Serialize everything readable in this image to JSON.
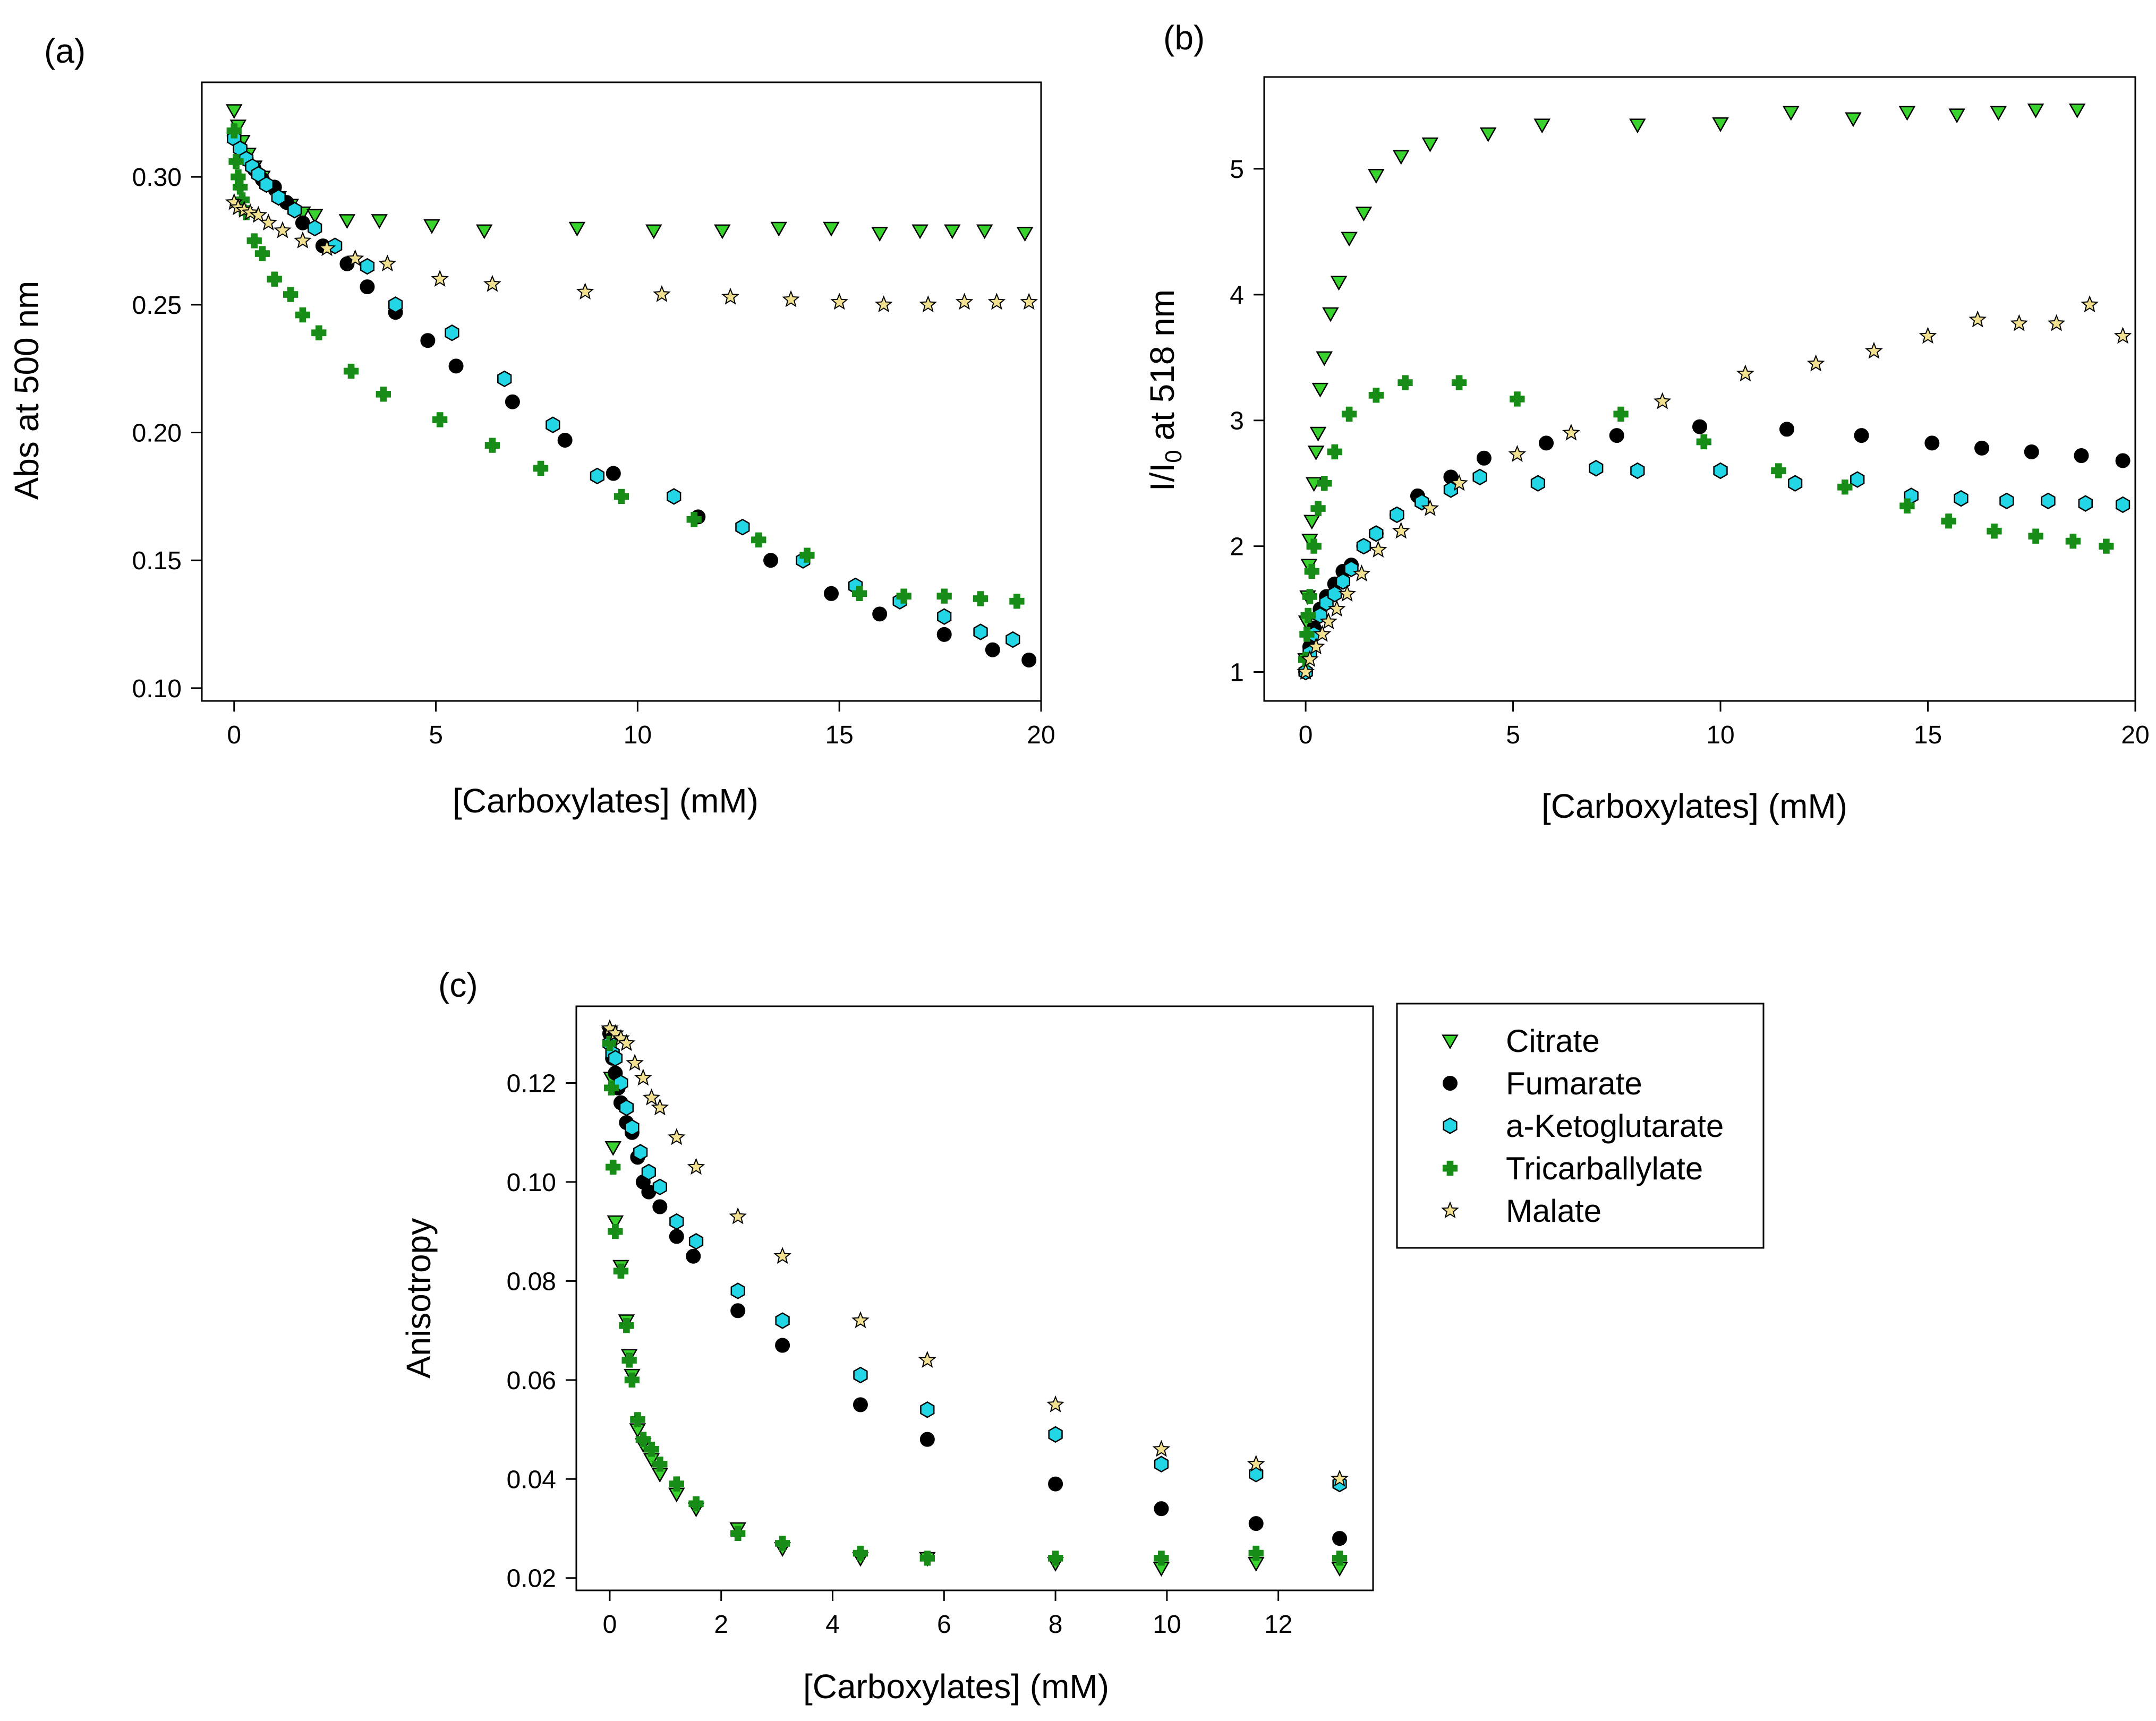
{
  "series_styles": {
    "Citrate": {
      "marker": "triangle-down",
      "fill": "#39d32e",
      "stroke": "#000000"
    },
    "Fumarate": {
      "marker": "circle",
      "fill": "#000000",
      "stroke": "#000000"
    },
    "a-Ketoglutarate": {
      "marker": "hexagon",
      "fill": "#22d6e6",
      "stroke": "#000000"
    },
    "Tricarballylate": {
      "marker": "cross",
      "fill": "#178c17",
      "stroke": "#178c17"
    },
    "Malate": {
      "marker": "star",
      "fill": "#f0e090",
      "stroke": "#000000"
    }
  },
  "legend": {
    "entries": [
      "Citrate",
      "Fumarate",
      "a-Ketoglutarate",
      "Tricarballylate",
      "Malate"
    ]
  },
  "chart_data": [
    {
      "id": "a",
      "panel_label": "(a)",
      "type": "scatter",
      "xlabel": "[Carboxylates] (mM)",
      "ylabel": "Abs at 500 nm",
      "xlim": [
        -0.8,
        20
      ],
      "ylim": [
        0.095,
        0.337
      ],
      "xticks": [
        0,
        5,
        10,
        15,
        20
      ],
      "yticks": [
        0.1,
        0.15,
        0.2,
        0.25,
        0.3
      ],
      "ytick_labels": [
        "0.10",
        "0.15",
        "0.20",
        "0.25",
        "0.30"
      ],
      "series": [
        {
          "name": "Citrate",
          "x": [
            0,
            0.1,
            0.2,
            0.35,
            0.5,
            0.7,
            0.9,
            1.1,
            1.4,
            1.7,
            2.0,
            2.8,
            3.6,
            4.9,
            6.2,
            8.5,
            10.4,
            12.1,
            13.5,
            14.8,
            16.0,
            17.0,
            17.8,
            18.6,
            19.6
          ],
          "y": [
            0.326,
            0.32,
            0.314,
            0.309,
            0.304,
            0.3,
            0.296,
            0.292,
            0.289,
            0.286,
            0.285,
            0.283,
            0.283,
            0.281,
            0.279,
            0.28,
            0.279,
            0.279,
            0.28,
            0.28,
            0.278,
            0.279,
            0.279,
            0.279,
            0.278
          ]
        },
        {
          "name": "Fumarate",
          "x": [
            0,
            0.15,
            0.3,
            0.5,
            0.7,
            1.0,
            1.3,
            1.7,
            2.2,
            2.8,
            3.3,
            4.0,
            4.8,
            5.5,
            6.9,
            8.2,
            9.4,
            11.5,
            13.3,
            14.8,
            16.0,
            17.6,
            18.8,
            19.7
          ],
          "y": [
            0.316,
            0.311,
            0.307,
            0.303,
            0.299,
            0.296,
            0.29,
            0.282,
            0.273,
            0.266,
            0.257,
            0.247,
            0.236,
            0.226,
            0.212,
            0.197,
            0.184,
            0.167,
            0.15,
            0.137,
            0.129,
            0.121,
            0.115,
            0.111
          ]
        },
        {
          "name": "a-Ketoglutarate",
          "x": [
            0,
            0.15,
            0.3,
            0.45,
            0.6,
            0.8,
            1.1,
            1.5,
            2.0,
            2.5,
            3.3,
            4.0,
            5.4,
            6.7,
            7.9,
            9.0,
            10.9,
            12.6,
            14.1,
            15.4,
            16.5,
            17.6,
            18.5,
            19.3
          ],
          "y": [
            0.315,
            0.311,
            0.307,
            0.304,
            0.301,
            0.297,
            0.292,
            0.287,
            0.28,
            0.273,
            0.265,
            0.25,
            0.239,
            0.221,
            0.203,
            0.183,
            0.175,
            0.163,
            0.15,
            0.14,
            0.134,
            0.128,
            0.122,
            0.119
          ]
        },
        {
          "name": "Tricarballylate",
          "x": [
            0,
            0.05,
            0.1,
            0.15,
            0.2,
            0.3,
            0.5,
            0.7,
            1.0,
            1.4,
            1.7,
            2.1,
            2.9,
            3.7,
            5.1,
            6.4,
            7.6,
            9.6,
            11.4,
            13.0,
            14.2,
            15.5,
            16.6,
            17.6,
            18.5,
            19.4
          ],
          "y": [
            0.318,
            0.306,
            0.3,
            0.296,
            0.291,
            0.286,
            0.275,
            0.27,
            0.26,
            0.254,
            0.246,
            0.239,
            0.224,
            0.215,
            0.205,
            0.195,
            0.186,
            0.175,
            0.166,
            0.158,
            0.152,
            0.137,
            0.136,
            0.136,
            0.135,
            0.134
          ]
        },
        {
          "name": "Malate",
          "x": [
            0,
            0.1,
            0.25,
            0.4,
            0.6,
            0.85,
            1.2,
            1.7,
            2.3,
            3.0,
            3.8,
            5.1,
            6.4,
            8.7,
            10.6,
            12.3,
            13.8,
            15.0,
            16.1,
            17.2,
            18.1,
            18.9,
            19.7
          ],
          "y": [
            0.29,
            0.288,
            0.287,
            0.286,
            0.285,
            0.282,
            0.279,
            0.275,
            0.272,
            0.268,
            0.266,
            0.26,
            0.258,
            0.255,
            0.254,
            0.253,
            0.252,
            0.251,
            0.25,
            0.25,
            0.251,
            0.251,
            0.251
          ]
        }
      ]
    },
    {
      "id": "b",
      "panel_label": "(b)",
      "type": "scatter",
      "xlabel": "[Carboxylates] (mM)",
      "ylabel_main": "I/I",
      "ylabel_sub": "0",
      "ylabel_rest": " at 518 nm",
      "xlim": [
        -1,
        20
      ],
      "ylim": [
        0.77,
        5.73
      ],
      "xticks": [
        0,
        5,
        10,
        15,
        20
      ],
      "yticks": [
        1,
        2,
        3,
        4,
        5
      ],
      "ytick_labels": [
        "1",
        "2",
        "3",
        "4",
        "5"
      ],
      "series": [
        {
          "name": "Citrate",
          "x": [
            0,
            0.02,
            0.05,
            0.08,
            0.1,
            0.15,
            0.2,
            0.25,
            0.3,
            0.35,
            0.45,
            0.6,
            0.8,
            1.05,
            1.4,
            1.7,
            2.3,
            3.0,
            4.4,
            5.7,
            8.0,
            10.0,
            11.7,
            13.2,
            14.5,
            15.7,
            16.7,
            17.6,
            18.6
          ],
          "y": [
            1.1,
            1.4,
            1.6,
            1.85,
            2.05,
            2.2,
            2.5,
            2.75,
            2.9,
            3.25,
            3.5,
            3.85,
            4.1,
            4.45,
            4.65,
            4.95,
            5.1,
            5.2,
            5.28,
            5.35,
            5.35,
            5.36,
            5.45,
            5.4,
            5.45,
            5.43,
            5.45,
            5.47,
            5.47
          ]
        },
        {
          "name": "Fumarate",
          "x": [
            0,
            0.1,
            0.2,
            0.35,
            0.5,
            0.7,
            0.9,
            1.1,
            1.4,
            1.7,
            2.2,
            2.7,
            3.5,
            4.3,
            5.8,
            7.5,
            9.5,
            11.6,
            13.4,
            15.1,
            16.3,
            17.5,
            18.7,
            19.7
          ],
          "y": [
            1.0,
            1.2,
            1.35,
            1.5,
            1.6,
            1.7,
            1.8,
            1.85,
            2.0,
            2.1,
            2.25,
            2.4,
            2.55,
            2.7,
            2.82,
            2.88,
            2.95,
            2.93,
            2.88,
            2.82,
            2.78,
            2.75,
            2.72,
            2.68
          ]
        },
        {
          "name": "a-Ketoglutarate",
          "x": [
            0,
            0.1,
            0.2,
            0.35,
            0.5,
            0.7,
            0.9,
            1.1,
            1.4,
            1.7,
            2.2,
            2.8,
            3.5,
            4.2,
            5.6,
            7.0,
            8.0,
            10.0,
            11.8,
            13.3,
            14.6,
            15.8,
            16.9,
            17.9,
            18.8,
            19.7
          ],
          "y": [
            1.0,
            1.15,
            1.3,
            1.45,
            1.55,
            1.62,
            1.72,
            1.82,
            2.0,
            2.1,
            2.25,
            2.35,
            2.45,
            2.55,
            2.5,
            2.62,
            2.6,
            2.6,
            2.5,
            2.53,
            2.4,
            2.38,
            2.36,
            2.36,
            2.34,
            2.33
          ]
        },
        {
          "name": "Tricarballylate",
          "x": [
            0,
            0.03,
            0.06,
            0.1,
            0.15,
            0.2,
            0.3,
            0.45,
            0.7,
            1.05,
            1.7,
            2.4,
            3.7,
            5.1,
            7.6,
            9.6,
            11.4,
            13.0,
            14.5,
            15.5,
            16.6,
            17.6,
            18.5,
            19.3
          ],
          "y": [
            1.1,
            1.3,
            1.45,
            1.6,
            1.8,
            2.0,
            2.3,
            2.5,
            2.75,
            3.05,
            3.2,
            3.3,
            3.3,
            3.17,
            3.05,
            2.83,
            2.6,
            2.47,
            2.32,
            2.2,
            2.12,
            2.08,
            2.04,
            2.0
          ]
        },
        {
          "name": "Malate",
          "x": [
            0,
            0.1,
            0.25,
            0.4,
            0.55,
            0.75,
            1.0,
            1.35,
            1.75,
            2.3,
            3.0,
            3.7,
            5.1,
            6.4,
            8.6,
            10.6,
            12.3,
            13.7,
            15.0,
            16.2,
            17.2,
            18.1,
            18.9,
            19.7
          ],
          "y": [
            1.0,
            1.1,
            1.2,
            1.3,
            1.4,
            1.5,
            1.62,
            1.78,
            1.97,
            2.12,
            2.3,
            2.5,
            2.73,
            2.9,
            3.15,
            3.37,
            3.45,
            3.55,
            3.67,
            3.8,
            3.77,
            3.77,
            3.92,
            3.67
          ]
        }
      ]
    },
    {
      "id": "c",
      "panel_label": "(c)",
      "type": "scatter",
      "xlabel": "[Carboxylates] (mM)",
      "ylabel": "Anisotropy",
      "xlim": [
        -0.6,
        13.7
      ],
      "ylim": [
        0.0175,
        0.1355
      ],
      "xticks": [
        0,
        2,
        4,
        6,
        8,
        10,
        12
      ],
      "yticks": [
        0.02,
        0.04,
        0.06,
        0.08,
        0.1,
        0.12
      ],
      "ytick_labels": [
        "0.02",
        "0.04",
        "0.06",
        "0.08",
        "0.10",
        "0.12"
      ],
      "series": [
        {
          "name": "Citrate",
          "x": [
            0,
            0.03,
            0.06,
            0.1,
            0.2,
            0.3,
            0.35,
            0.4,
            0.5,
            0.6,
            0.75,
            0.9,
            1.2,
            1.55,
            2.3,
            3.1,
            4.5,
            5.7,
            8.0,
            9.9,
            11.6,
            13.1
          ],
          "y": [
            0.13,
            0.121,
            0.107,
            0.092,
            0.083,
            0.072,
            0.065,
            0.061,
            0.05,
            0.047,
            0.044,
            0.041,
            0.037,
            0.034,
            0.03,
            0.026,
            0.024,
            0.024,
            0.023,
            0.022,
            0.023,
            0.022
          ]
        },
        {
          "name": "Fumarate",
          "x": [
            0,
            0.05,
            0.1,
            0.15,
            0.2,
            0.3,
            0.4,
            0.5,
            0.6,
            0.7,
            0.9,
            1.2,
            1.5,
            2.3,
            3.1,
            4.5,
            5.7,
            8.0,
            9.9,
            11.6,
            13.1
          ],
          "y": [
            0.13,
            0.125,
            0.122,
            0.119,
            0.116,
            0.112,
            0.11,
            0.105,
            0.1,
            0.098,
            0.095,
            0.089,
            0.085,
            0.074,
            0.067,
            0.055,
            0.048,
            0.039,
            0.034,
            0.031,
            0.028
          ]
        },
        {
          "name": "a-Ketoglutarate",
          "x": [
            0,
            0.05,
            0.1,
            0.2,
            0.3,
            0.4,
            0.55,
            0.7,
            0.9,
            1.2,
            1.55,
            2.3,
            3.1,
            4.5,
            5.7,
            8.0,
            9.9,
            11.6,
            13.1
          ],
          "y": [
            0.128,
            0.126,
            0.125,
            0.12,
            0.115,
            0.111,
            0.106,
            0.102,
            0.099,
            0.092,
            0.088,
            0.078,
            0.072,
            0.061,
            0.054,
            0.049,
            0.043,
            0.041,
            0.039
          ]
        },
        {
          "name": "Tricarballylate",
          "x": [
            0,
            0.03,
            0.06,
            0.1,
            0.2,
            0.3,
            0.35,
            0.4,
            0.5,
            0.6,
            0.75,
            0.9,
            1.2,
            1.55,
            2.3,
            3.1,
            4.5,
            5.7,
            8.0,
            9.9,
            11.6,
            13.1
          ],
          "y": [
            0.128,
            0.119,
            0.103,
            0.09,
            0.082,
            0.071,
            0.064,
            0.06,
            0.052,
            0.048,
            0.046,
            0.043,
            0.039,
            0.035,
            0.029,
            0.027,
            0.025,
            0.024,
            0.024,
            0.024,
            0.025,
            0.024
          ]
        },
        {
          "name": "Malate",
          "x": [
            0,
            0.1,
            0.2,
            0.3,
            0.45,
            0.6,
            0.75,
            0.9,
            1.2,
            1.55,
            2.3,
            3.1,
            4.5,
            5.7,
            8.0,
            9.9,
            11.6,
            13.1
          ],
          "y": [
            0.131,
            0.13,
            0.129,
            0.128,
            0.124,
            0.121,
            0.117,
            0.115,
            0.109,
            0.103,
            0.093,
            0.085,
            0.072,
            0.064,
            0.055,
            0.046,
            0.043,
            0.04
          ]
        }
      ]
    }
  ]
}
